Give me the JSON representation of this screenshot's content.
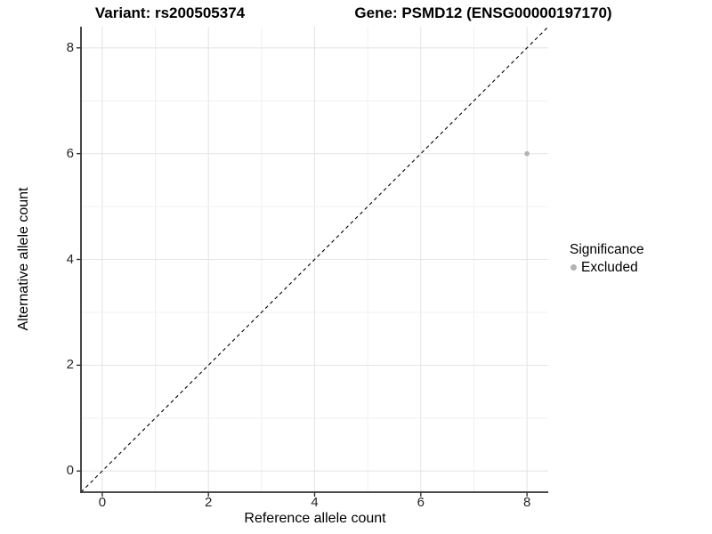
{
  "chart_data": {
    "type": "scatter",
    "title_left": "Variant: rs200505374",
    "title_right": "Gene: PSMD12 (ENSG00000197170)",
    "xlabel": "Reference allele count",
    "ylabel": "Alternative allele count",
    "xlim": [
      -0.4,
      8.4
    ],
    "ylim": [
      -0.4,
      8.4
    ],
    "xticks": [
      0,
      2,
      4,
      6,
      8
    ],
    "yticks": [
      0,
      2,
      4,
      6,
      8
    ],
    "grid": "major and minor gridlines at every integer 0-8",
    "minor_grid_step": 1,
    "reference_line": {
      "type": "identity y=x",
      "style": "dashed",
      "color": "#000000"
    },
    "series": [
      {
        "name": "Excluded",
        "color": "#b3b3b3",
        "point_radius": 2.8,
        "points": [
          {
            "x": 8,
            "y": 6
          }
        ]
      }
    ],
    "legend": {
      "title": "Significance",
      "position": "right",
      "entries": [
        {
          "label": "Excluded",
          "color": "#b3b3b3"
        }
      ]
    },
    "colors": {
      "grid_major": "#e5e5e5",
      "grid_minor": "#f0f0f0",
      "axis_line": "#333333",
      "tick_mark": "#333333",
      "tick_text": "#262626"
    }
  }
}
